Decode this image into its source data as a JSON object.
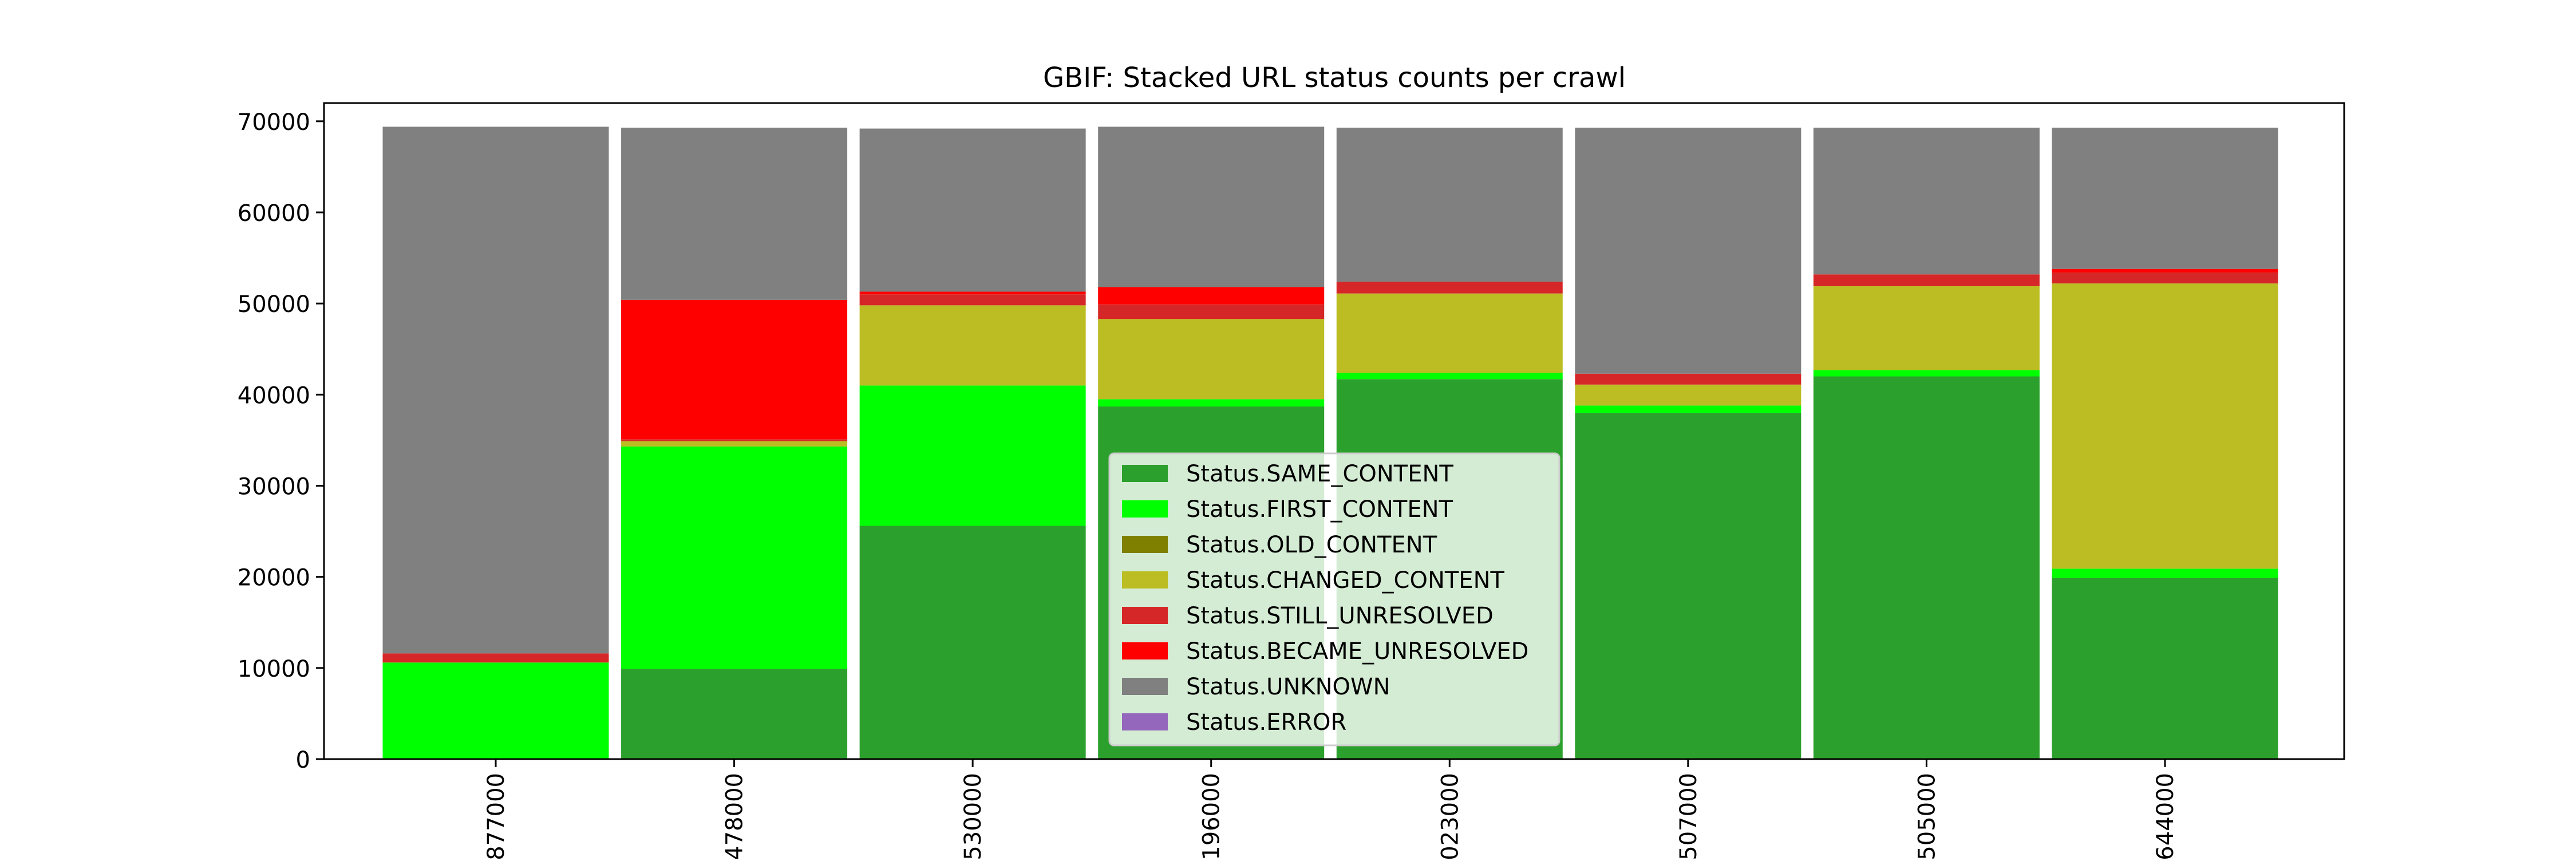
{
  "chart_data": {
    "type": "bar",
    "stacked": true,
    "title": "GBIF: Stacked URL status counts per crawl",
    "xlabel": "",
    "ylabel": "",
    "categories": [
      "877000",
      "478000",
      "530000",
      "196000",
      "023000",
      "507000",
      "505000",
      "644000"
    ],
    "ylim": [
      0,
      72000
    ],
    "yticks": [
      0,
      10000,
      20000,
      30000,
      40000,
      50000,
      60000,
      70000
    ],
    "grid": false,
    "legend_position": "bottom-center",
    "series": [
      {
        "name": "Status.SAME_CONTENT",
        "color": "#2ca02c",
        "values": [
          0,
          9900,
          25600,
          38700,
          41700,
          38000,
          42000,
          19900
        ]
      },
      {
        "name": "Status.FIRST_CONTENT",
        "color": "#00ff00",
        "values": [
          10600,
          24400,
          15400,
          800,
          700,
          800,
          700,
          1000
        ]
      },
      {
        "name": "Status.OLD_CONTENT",
        "color": "#808000",
        "values": [
          0,
          0,
          0,
          0,
          0,
          0,
          0,
          0
        ]
      },
      {
        "name": "Status.CHANGED_CONTENT",
        "color": "#bcbd22",
        "values": [
          0,
          600,
          8800,
          8800,
          8700,
          2300,
          9200,
          31300
        ]
      },
      {
        "name": "Status.STILL_UNRESOLVED",
        "color": "#d62728",
        "values": [
          1000,
          200,
          1200,
          1600,
          1300,
          1200,
          1300,
          1200
        ]
      },
      {
        "name": "Status.BECAME_UNRESOLVED",
        "color": "#ff0000",
        "values": [
          0,
          15300,
          300,
          1900,
          0,
          0,
          0,
          400
        ]
      },
      {
        "name": "Status.UNKNOWN",
        "color": "#808080",
        "values": [
          57800,
          18900,
          17900,
          17600,
          16900,
          27000,
          16100,
          15500
        ]
      },
      {
        "name": "Status.ERROR",
        "color": "#9467bd",
        "values": [
          0,
          0,
          0,
          0,
          0,
          0,
          0,
          0
        ]
      }
    ]
  }
}
